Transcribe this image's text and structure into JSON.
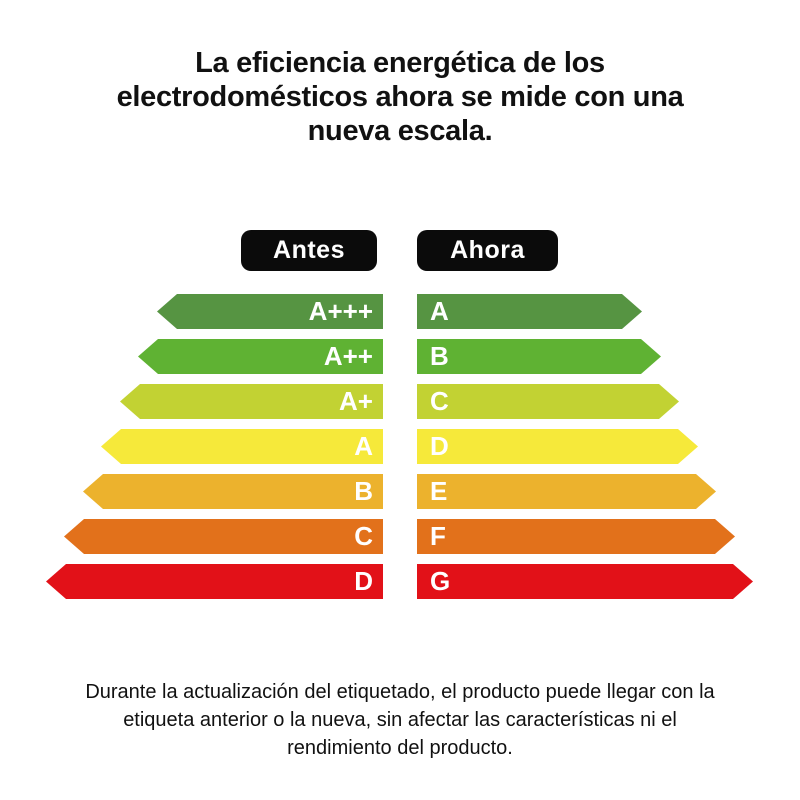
{
  "colors": {
    "background": "#FFFFFF",
    "text": "#111111",
    "badge_bg": "#0B0B0B",
    "badge_text": "#FFFFFF",
    "arrow_label": "#FFFFFF"
  },
  "title": {
    "line1": "La eficiencia energética de los",
    "line2": "electrodomésticos ahora se mide con una",
    "line3": "nueva escala."
  },
  "legend": {
    "before_label": "Antes",
    "after_label": "Ahora"
  },
  "chart_data": {
    "type": "table",
    "columns": [
      "Antes",
      "Ahora"
    ],
    "legend_position": "top",
    "rows": [
      {
        "before": "A+++",
        "after": "A",
        "color": "#569442"
      },
      {
        "before": "A++",
        "after": "B",
        "color": "#5FB233"
      },
      {
        "before": "A+",
        "after": "C",
        "color": "#C2D233"
      },
      {
        "before": "A",
        "after": "D",
        "color": "#F6E93A"
      },
      {
        "before": "B",
        "after": "E",
        "color": "#ECB22D"
      },
      {
        "before": "C",
        "after": "F",
        "color": "#E2711B"
      },
      {
        "before": "D",
        "after": "G",
        "color": "#E21118"
      }
    ]
  },
  "footer": {
    "line1": "Durante la actualización del etiquetado, el producto puede llegar con la",
    "line2": "etiqueta anterior o la nueva, sin afectar las características ni el",
    "line3": "rendimiento del producto."
  }
}
